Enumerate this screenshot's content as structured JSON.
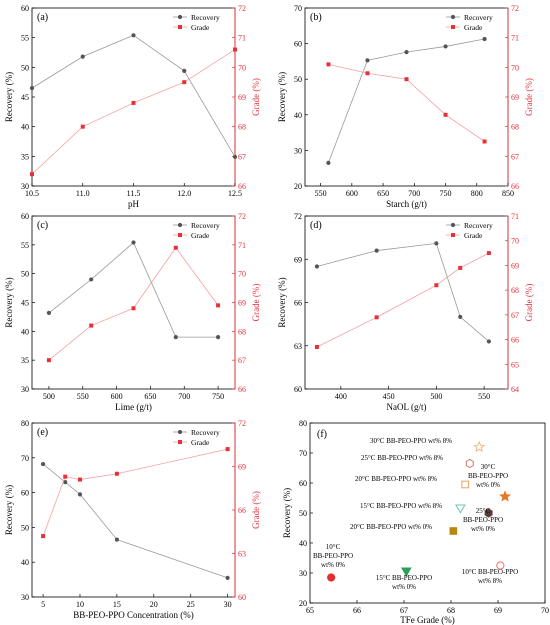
{
  "chart_data": [
    {
      "panel": "(a)",
      "type": "line",
      "xlabel": "pH",
      "ylabel": "Recovery (%)",
      "y2label": "Grade (%)",
      "xlim": [
        10.5,
        12.5
      ],
      "xticks": [
        10.5,
        11.0,
        11.5,
        12.0,
        12.5
      ],
      "xtick_labels": [
        "10.5",
        "11.0",
        "11.5",
        "12.0",
        "12.5"
      ],
      "ylim": [
        30,
        60
      ],
      "yticks": [
        30,
        35,
        40,
        45,
        50,
        55,
        60
      ],
      "y2lim": [
        66,
        72
      ],
      "y2ticks": [
        66,
        67,
        68,
        69,
        70,
        71,
        72
      ],
      "legend": [
        "Recovery",
        "Grade"
      ],
      "legend_position": "top-right",
      "series": [
        {
          "name": "Recovery",
          "axis": "left",
          "x": [
            10.5,
            11.0,
            11.5,
            12.0,
            12.5
          ],
          "values": [
            46.5,
            51.8,
            55.4,
            49.4,
            34.9
          ]
        },
        {
          "name": "Grade",
          "axis": "right",
          "x": [
            10.5,
            11.0,
            11.5,
            12.0,
            12.5
          ],
          "values": [
            66.4,
            68.0,
            68.8,
            69.5,
            70.6
          ]
        }
      ]
    },
    {
      "panel": "(b)",
      "type": "line",
      "xlabel": "Starch (g/t)",
      "ylabel": "Recovery (%)",
      "y2label": "Grade (%)",
      "xlim": [
        525,
        850
      ],
      "xticks": [
        550,
        600,
        650,
        700,
        750,
        800,
        850
      ],
      "xtick_labels": [
        "550",
        "600",
        "650",
        "700",
        "750",
        "800",
        "850"
      ],
      "ylim": [
        20,
        70
      ],
      "yticks": [
        20,
        30,
        40,
        50,
        60,
        70
      ],
      "y2lim": [
        66,
        72
      ],
      "y2ticks": [
        66,
        67,
        68,
        69,
        70,
        71,
        72
      ],
      "legend": [
        "Recovery",
        "Grade"
      ],
      "legend_position": "top-right",
      "series": [
        {
          "name": "Recovery",
          "axis": "left",
          "x": [
            562.5,
            625,
            687.5,
            750,
            812.5
          ],
          "values": [
            26.5,
            55.3,
            57.6,
            59.2,
            61.3
          ]
        },
        {
          "name": "Grade",
          "axis": "right",
          "x": [
            562.5,
            625,
            687.5,
            750,
            812.5
          ],
          "values": [
            70.1,
            69.8,
            69.6,
            68.4,
            67.5
          ]
        }
      ]
    },
    {
      "panel": "(c)",
      "type": "line",
      "xlabel": "Lime (g/t)",
      "ylabel": "Recovery (%)",
      "y2label": "Grade (%)",
      "xlim": [
        475,
        775
      ],
      "xticks": [
        500,
        550,
        600,
        650,
        700,
        750
      ],
      "xtick_labels": [
        "500",
        "550",
        "600",
        "650",
        "700",
        "750"
      ],
      "ylim": [
        30,
        60
      ],
      "yticks": [
        30,
        35,
        40,
        45,
        50,
        55,
        60
      ],
      "y2lim": [
        66,
        72
      ],
      "y2ticks": [
        66,
        67,
        68,
        69,
        70,
        71,
        72
      ],
      "legend": [
        "Recovery",
        "Grade"
      ],
      "legend_position": "top-right",
      "series": [
        {
          "name": "Recovery",
          "axis": "left",
          "x": [
            500,
            562.5,
            625,
            687.5,
            750
          ],
          "values": [
            43.2,
            49.0,
            55.4,
            39.0,
            39.0
          ]
        },
        {
          "name": "Grade",
          "axis": "right",
          "x": [
            500,
            562.5,
            625,
            687.5,
            750
          ],
          "values": [
            67.0,
            68.2,
            68.8,
            70.9,
            68.9
          ]
        }
      ]
    },
    {
      "panel": "(d)",
      "type": "line",
      "xlabel": "NaOL (g/t)",
      "ylabel": "Recovery (%)",
      "y2label": "Grade (%)",
      "xlim": [
        362.5,
        575
      ],
      "xticks": [
        400,
        450,
        500,
        550
      ],
      "xtick_labels": [
        "400",
        "450",
        "500",
        "550"
      ],
      "ylim": [
        60,
        72
      ],
      "yticks": [
        60,
        63,
        66,
        69,
        72
      ],
      "y2lim": [
        64,
        71
      ],
      "y2ticks": [
        64,
        65,
        66,
        67,
        68,
        69,
        70,
        71
      ],
      "legend": [
        "Recovery",
        "Grade"
      ],
      "legend_position": "top-right",
      "series": [
        {
          "name": "Recovery",
          "axis": "left",
          "x": [
            375,
            437.5,
            500,
            525,
            555
          ],
          "values": [
            68.5,
            69.6,
            70.1,
            65.0,
            63.3
          ]
        },
        {
          "name": "Grade",
          "axis": "right",
          "x": [
            375,
            437.5,
            500,
            525,
            555
          ],
          "values": [
            65.7,
            66.9,
            68.2,
            68.9,
            69.5
          ]
        }
      ]
    },
    {
      "panel": "(e)",
      "type": "line",
      "xlabel": "BB-PEO-PPO Concentration (%)",
      "ylabel": "Recovery (%)",
      "y2label": "Grade (%)",
      "xlim": [
        3.5,
        31
      ],
      "xticks": [
        5,
        10,
        15,
        20,
        25,
        30
      ],
      "xtick_labels": [
        "5",
        "10",
        "15",
        "20",
        "25",
        "30"
      ],
      "ylim": [
        30,
        80
      ],
      "yticks": [
        30,
        40,
        50,
        60,
        70,
        80
      ],
      "y2lim": [
        60,
        72
      ],
      "y2ticks": [
        60,
        63,
        66,
        69,
        72
      ],
      "legend": [
        "Recovery",
        "Grade"
      ],
      "legend_position": "top-right",
      "series": [
        {
          "name": "Recovery",
          "axis": "left",
          "x": [
            5,
            8,
            10,
            15,
            30
          ],
          "values": [
            68.2,
            63.0,
            59.5,
            46.5,
            35.5
          ]
        },
        {
          "name": "Grade",
          "axis": "right",
          "x": [
            5,
            8,
            10,
            15,
            30
          ],
          "values": [
            64.2,
            68.3,
            68.1,
            68.5,
            70.2
          ]
        }
      ]
    },
    {
      "panel": "(f)",
      "type": "scatter",
      "xlabel": "TFe Grade (%)",
      "ylabel": "Recovery (%)",
      "xlim": [
        65,
        70
      ],
      "xticks": [
        65,
        66,
        67,
        68,
        69,
        70
      ],
      "ylim": [
        20,
        80
      ],
      "yticks": [
        20,
        30,
        40,
        50,
        60,
        70,
        80
      ],
      "points": [
        {
          "label": "30°C BB-PEO-PPO wt% 8%",
          "x": 68.6,
          "y": 72.0,
          "marker": "star-open",
          "color": "#f5b27a"
        },
        {
          "label": "25°C BB-PEO-PPO wt% 8%",
          "x": 68.4,
          "y": 66.5,
          "marker": "hexagon-open",
          "color": "#c07a6a"
        },
        {
          "label": "20°C BB-PEO-PPO wt% 8%",
          "x": 68.3,
          "y": 59.5,
          "marker": "square-open",
          "color": "#f0a060"
        },
        {
          "label": "15°C BB-PEO-PPO wt% 8%",
          "x": 68.2,
          "y": 51.5,
          "marker": "triangle-down-open",
          "color": "#6cc8b8"
        },
        {
          "label": "20°C BB-PEO-PPO wt% 0%",
          "x": 68.05,
          "y": 44.0,
          "marker": "square",
          "color": "#b8860b"
        },
        {
          "label": "30°C BB-PEO-PPO wt% 0%",
          "x": 69.15,
          "y": 55.5,
          "marker": "star",
          "color": "#e87722"
        },
        {
          "label": "25°C BB-PEO-PPO wt% 0%",
          "x": 68.8,
          "y": 50.0,
          "marker": "hexagon",
          "color": "#5a3a3a"
        },
        {
          "label": "10°C BB-PEO-PPO wt% 8%",
          "x": 69.05,
          "y": 32.5,
          "marker": "circle-open",
          "color": "#e87070"
        },
        {
          "label": "15°C BB-PEO-PPO wt% 0%",
          "x": 67.05,
          "y": 30.5,
          "marker": "triangle-down",
          "color": "#2ca05a"
        },
        {
          "label": "10°C BB-PEO-PPO wt% 0%",
          "x": 65.45,
          "y": 28.5,
          "marker": "circle",
          "color": "#e03030"
        }
      ]
    }
  ],
  "annotations": {
    "a1": "30°C  BB-PEO-PPO  wt%  8%",
    "a2": "25°C  BB-PEO-PPO  wt% 8%",
    "a3": "20°C  BB-PEO-PPO  wt% 8%",
    "a4": "15°C  BB-PEO-PPO  wt% 8%",
    "a5": "20°C  BB-PEO-PPO  wt% 0%",
    "a6a": "30°C",
    "a6b": "BB-PEO-PPO",
    "a6c": "wt% 0%",
    "a7a": "25°C",
    "a7b": "BB-PEO-PPO",
    "a7c": "wt% 0%",
    "a8a": "10°C BB-PEO-PPO",
    "a8b": "wt% 8%",
    "a9a": "15°C BB-PEO-PPO",
    "a9b": "wt% 0%",
    "a10a": "10°C",
    "a10b": "BB-PEO-PPO",
    "a10c": "wt% 0%"
  },
  "colors": {
    "recovery": "#555555",
    "grade": "#e8303a",
    "recovery_line": "#9a9a9a",
    "grade_line": "#f4a0a0"
  }
}
